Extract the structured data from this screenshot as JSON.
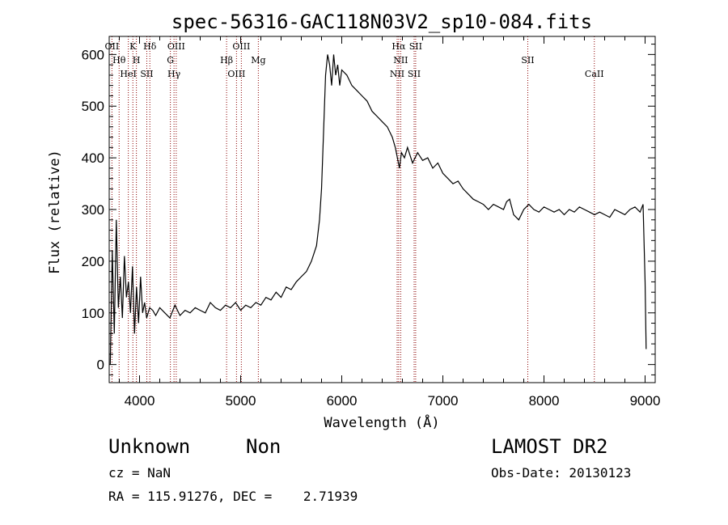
{
  "chart_data": {
    "type": "line",
    "title": "spec-56316-GAC118N03V2_sp10-084.fits",
    "xlabel": "Wavelength (Å)",
    "ylabel": "Flux (relative)",
    "xlim": [
      3700,
      9100
    ],
    "ylim": [
      -35,
      635
    ],
    "xticks": [
      4000,
      5000,
      6000,
      7000,
      8000,
      9000
    ],
    "yticks": [
      0,
      100,
      200,
      300,
      400,
      500,
      600
    ],
    "series": [
      {
        "x": [
          3710,
          3730,
          3750,
          3770,
          3790,
          3810,
          3830,
          3850,
          3870,
          3890,
          3910,
          3930,
          3950,
          3970,
          3990,
          4010,
          4030,
          4050,
          4070,
          4100,
          4130,
          4160,
          4200,
          4250,
          4300,
          4350,
          4400,
          4450,
          4500,
          4550,
          4600,
          4650,
          4700,
          4750,
          4800,
          4850,
          4900,
          4950,
          5000,
          5050,
          5100,
          5150,
          5200,
          5250,
          5300,
          5350,
          5400,
          5450,
          5500,
          5550,
          5600,
          5650,
          5700,
          5750,
          5780,
          5800,
          5820,
          5840,
          5860,
          5880,
          5900,
          5920,
          5940,
          5960,
          5980,
          6000,
          6050,
          6100,
          6150,
          6200,
          6250,
          6300,
          6350,
          6400,
          6450,
          6500,
          6530,
          6550,
          6570,
          6590,
          6620,
          6650,
          6700,
          6750,
          6800,
          6850,
          6900,
          6950,
          7000,
          7050,
          7100,
          7150,
          7200,
          7250,
          7300,
          7350,
          7400,
          7450,
          7500,
          7550,
          7600,
          7630,
          7660,
          7700,
          7750,
          7800,
          7850,
          7900,
          7950,
          8000,
          8050,
          8100,
          8150,
          8200,
          8250,
          8300,
          8350,
          8400,
          8450,
          8500,
          8550,
          8600,
          8650,
          8700,
          8750,
          8800,
          8850,
          8900,
          8950,
          8980,
          9000,
          9010
        ],
        "values": [
          0,
          220,
          60,
          280,
          110,
          170,
          90,
          210,
          130,
          160,
          100,
          190,
          60,
          150,
          80,
          170,
          100,
          120,
          90,
          110,
          105,
          95,
          110,
          100,
          90,
          115,
          95,
          105,
          100,
          110,
          105,
          100,
          120,
          110,
          105,
          115,
          110,
          120,
          105,
          115,
          110,
          120,
          115,
          130,
          125,
          140,
          130,
          150,
          145,
          160,
          170,
          180,
          200,
          230,
          280,
          340,
          450,
          560,
          600,
          580,
          540,
          600,
          560,
          580,
          540,
          570,
          560,
          540,
          530,
          520,
          510,
          490,
          480,
          470,
          460,
          440,
          420,
          400,
          380,
          410,
          400,
          420,
          390,
          410,
          395,
          400,
          380,
          390,
          370,
          360,
          350,
          355,
          340,
          330,
          320,
          315,
          310,
          300,
          310,
          305,
          300,
          315,
          320,
          290,
          280,
          300,
          310,
          300,
          295,
          305,
          300,
          295,
          300,
          290,
          300,
          295,
          305,
          300,
          295,
          290,
          295,
          290,
          285,
          300,
          295,
          290,
          300,
          305,
          295,
          310,
          160,
          30
        ]
      }
    ],
    "lines": [
      {
        "label": "OII",
        "x": 3727
      },
      {
        "label": "Hθ",
        "x": 3798
      },
      {
        "label": "HeI",
        "x": 3889
      },
      {
        "label": "K",
        "x": 3934
      },
      {
        "label": "H",
        "x": 3969
      },
      {
        "label": "SII",
        "x": 4072
      },
      {
        "label": "Hδ",
        "x": 4102
      },
      {
        "label": "G",
        "x": 4305
      },
      {
        "label": "Hγ",
        "x": 4341
      },
      {
        "label": "OIII",
        "x": 4363
      },
      {
        "label": "Hβ",
        "x": 4861
      },
      {
        "label": "OIII",
        "x": 4959
      },
      {
        "label": "OIII",
        "x": 5007
      },
      {
        "label": "Mg",
        "x": 5175
      },
      {
        "label": "NII",
        "x": 6548
      },
      {
        "label": "Hα",
        "x": 6563
      },
      {
        "label": "NII",
        "x": 6583
      },
      {
        "label": "SII",
        "x": 6716
      },
      {
        "label": "SII",
        "x": 6731
      },
      {
        "label": "SII",
        "x": 7840
      },
      {
        "label": "CaII",
        "x": 8498
      }
    ],
    "line_color": "#8b0000"
  },
  "info": {
    "class": "Unknown",
    "subclass": "Non",
    "cz": "cz = NaN",
    "radec": "RA = 115.91276, DEC =    2.71939",
    "survey": "LAMOST DR2",
    "obsdate": "Obs-Date: 20130123"
  }
}
